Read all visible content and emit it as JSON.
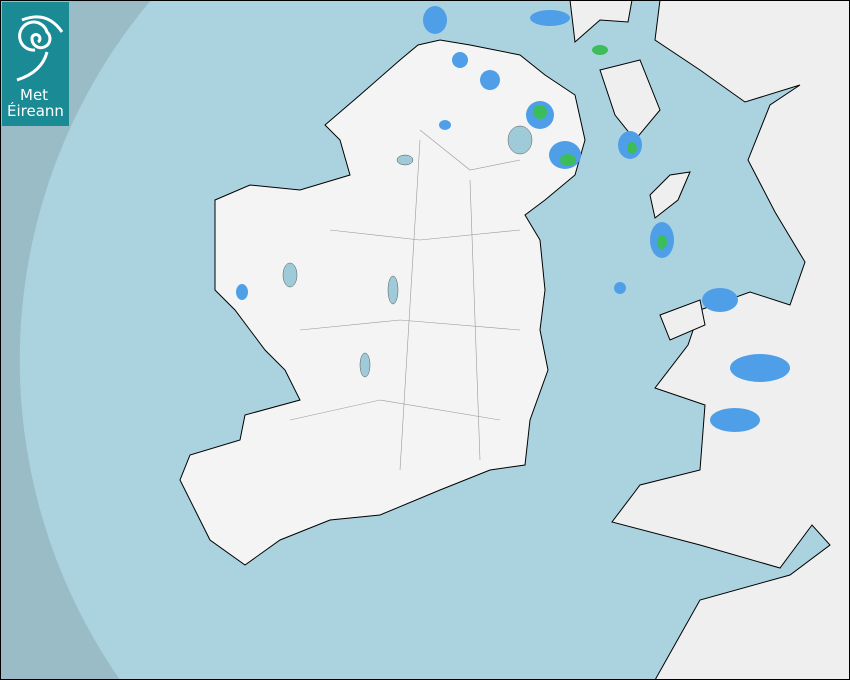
{
  "logo": {
    "line1": "Met",
    "line2": "Éireann"
  },
  "map": {
    "type": "rainfall radar",
    "colors": {
      "outside_coverage": "#99bcc7",
      "sea": "#aad3df",
      "land": "#f3f3f3",
      "rain_light": "#4f9fe8",
      "rain_moderate": "#3cbd5a",
      "border": "#000000"
    }
  }
}
